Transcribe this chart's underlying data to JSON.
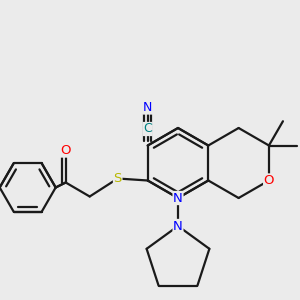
{
  "bg_color": "#ebebeb",
  "bond_color": "#1a1a1a",
  "bond_width": 1.6,
  "atom_colors": {
    "N": "#0000ff",
    "O": "#ff0000",
    "S": "#b8b800",
    "C_nitrile_c": "#008080",
    "C_nitrile_n": "#0000ff",
    "default": "#1a1a1a"
  },
  "font_size": 9.5,
  "font_size_small": 8.0
}
